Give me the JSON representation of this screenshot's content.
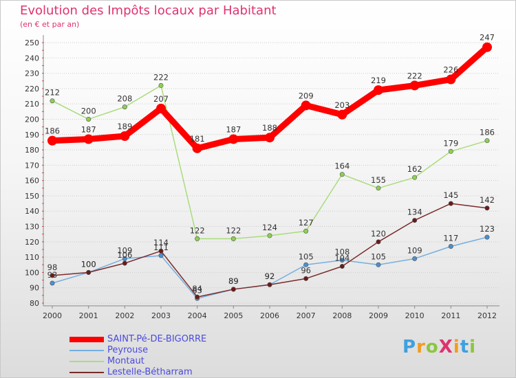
{
  "header": {
    "title": "Evolution des Impôts locaux par Habitant",
    "subtitle": "(en € et par an)"
  },
  "logo": {
    "text": "Proxiti",
    "alt_text": "ProXiti"
  },
  "colors": {
    "title": "#e0316f",
    "legend_text": "#4a4ae0",
    "axis_text": "#333333",
    "grid": "#cccccc"
  },
  "chart_data": {
    "type": "line",
    "title": "Evolution des Impôts locaux par Habitant",
    "subtitle": "(en € et par an)",
    "xlabel": "",
    "ylabel": "",
    "x": [
      "2000",
      "2001",
      "2002",
      "2003",
      "2004",
      "2005",
      "2006",
      "2007",
      "2008",
      "2009",
      "2010",
      "2011",
      "2012"
    ],
    "ylim": [
      80,
      250
    ],
    "yticks": [
      80,
      90,
      100,
      110,
      120,
      130,
      140,
      150,
      160,
      170,
      180,
      190,
      200,
      210,
      220,
      230,
      240,
      250
    ],
    "grid": true,
    "legend_position": "bottom-left",
    "series": [
      {
        "name": "Montaut",
        "color": "#8cd050",
        "line_color": "#a9dc7c",
        "thickness": "thin",
        "values": [
          212,
          200,
          208,
          222,
          122,
          122,
          124,
          127,
          164,
          155,
          162,
          179,
          186
        ]
      },
      {
        "name": "Peyrouse",
        "color": "#4a90d0",
        "line_color": "#74aee0",
        "thickness": "thin",
        "values": [
          93,
          100,
          109,
          111,
          83,
          89,
          92,
          105,
          108,
          105,
          109,
          117,
          123
        ]
      },
      {
        "name": "Lestelle-Bétharram",
        "color": "#6b1a1a",
        "line_color": "#7a2a2a",
        "thickness": "thin",
        "values": [
          98,
          100,
          106,
          114,
          84,
          89,
          92,
          96,
          104,
          120,
          134,
          145,
          142
        ]
      },
      {
        "name": "SAINT-Pé-DE-BIGORRE",
        "color": "#ff0000",
        "line_color": "#ff0000",
        "thickness": "thick",
        "values": [
          186,
          187,
          189,
          207,
          181,
          187,
          188,
          209,
          203,
          219,
          222,
          226,
          247
        ]
      }
    ],
    "legend_order": [
      "SAINT-Pé-DE-BIGORRE",
      "Peyrouse",
      "Montaut",
      "Lestelle-Bétharram"
    ]
  }
}
